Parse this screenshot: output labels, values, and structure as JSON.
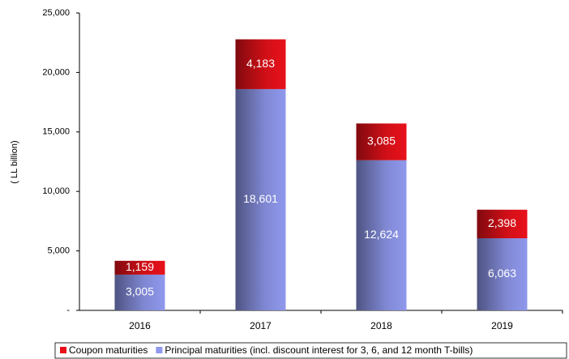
{
  "chart_data": {
    "type": "stacked_bar",
    "y_label": "( LL billion)",
    "categories": [
      "2016",
      "2017",
      "2018",
      "2019"
    ],
    "series": [
      {
        "name": "Principal maturities (incl. discount interest for 3, 6, and 12 month T-bills)",
        "color": "#8f98ec",
        "values": [
          3005,
          18601,
          12624,
          6063
        ],
        "value_labels": [
          "3,005",
          "18,601",
          "12,624",
          "6,063"
        ]
      },
      {
        "name": "Coupon maturities",
        "color": "#e8111a",
        "values": [
          1159,
          4183,
          3085,
          2398
        ],
        "value_labels": [
          "1,159",
          "4,183",
          "3,085",
          "2,398"
        ]
      }
    ],
    "ylim": [
      0,
      25000
    ],
    "yticks": [
      {
        "value": 0,
        "label": "-"
      },
      {
        "value": 5000,
        "label": "5,000"
      },
      {
        "value": 10000,
        "label": "10,000"
      },
      {
        "value": 15000,
        "label": "15,000"
      },
      {
        "value": 20000,
        "label": "20,000"
      },
      {
        "value": 25000,
        "label": "25,000"
      }
    ],
    "legend_order": [
      1,
      0
    ],
    "legend": "bottom"
  }
}
